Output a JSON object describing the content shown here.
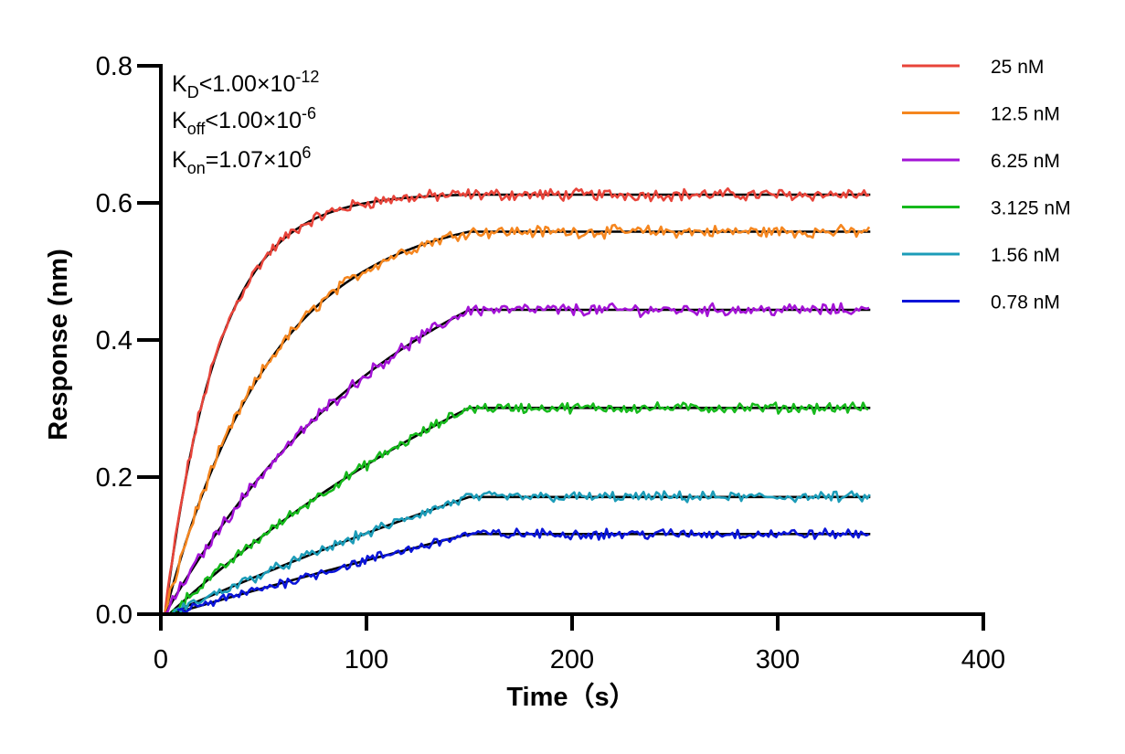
{
  "chart_data": {
    "type": "line",
    "title": "",
    "xlabel": "Time（s）",
    "ylabel": "Response (nm)",
    "xlim": [
      0,
      400
    ],
    "ylim": [
      0,
      0.8
    ],
    "xticks": [
      0,
      100,
      200,
      300,
      400
    ],
    "yticks": [
      0.0,
      0.2,
      0.4,
      0.6,
      0.8
    ],
    "xtick_labels": [
      "0",
      "100",
      "200",
      "300",
      "400"
    ],
    "ytick_labels": [
      "0.0",
      "0.2",
      "0.4",
      "0.6",
      "0.8"
    ],
    "grid": false,
    "legend_position": "top-right",
    "annotations": {
      "kd": {
        "base": "K",
        "sub": "D",
        "rel": "<1.00×10",
        "sup": "-12"
      },
      "koff": {
        "base": "K",
        "sub": "off",
        "rel": "<1.00×10",
        "sup": "-6"
      },
      "kon": {
        "base": "K",
        "sub": "on",
        "rel": "=1.07×10",
        "sup": "6"
      }
    },
    "association_end": 150,
    "x_end": 345,
    "fit_color": "#000000",
    "series": [
      {
        "name": "25 nM",
        "color": "#e8443a",
        "fit_start": 2,
        "plateau": 0.612,
        "tau": 26,
        "data_start": 2,
        "noise": 0.007
      },
      {
        "name": "12.5 nM",
        "color": "#f5861f",
        "fit_start": 2,
        "plateau": 0.558,
        "tau": 52,
        "data_start": 2,
        "noise": 0.007
      },
      {
        "name": "6.25 nM",
        "color": "#a313d6",
        "fit_start": 2,
        "plateau": 0.444,
        "tau": 120,
        "data_start": 2,
        "noise": 0.007
      },
      {
        "name": "3.125 nM",
        "color": "#16b91c",
        "fit_start": 4,
        "plateau": 0.301,
        "tau": 240,
        "data_start": 4,
        "noise": 0.006
      },
      {
        "name": "1.56 nM",
        "color": "#1c9cb8",
        "fit_start": 4,
        "plateau": 0.171,
        "tau": 500,
        "data_start": 6,
        "noise": 0.006
      },
      {
        "name": "0.78 nM",
        "color": "#0a14d8",
        "fit_start": 5,
        "plateau": 0.117,
        "tau": 1000,
        "data_start": 8,
        "noise": 0.006
      }
    ]
  }
}
